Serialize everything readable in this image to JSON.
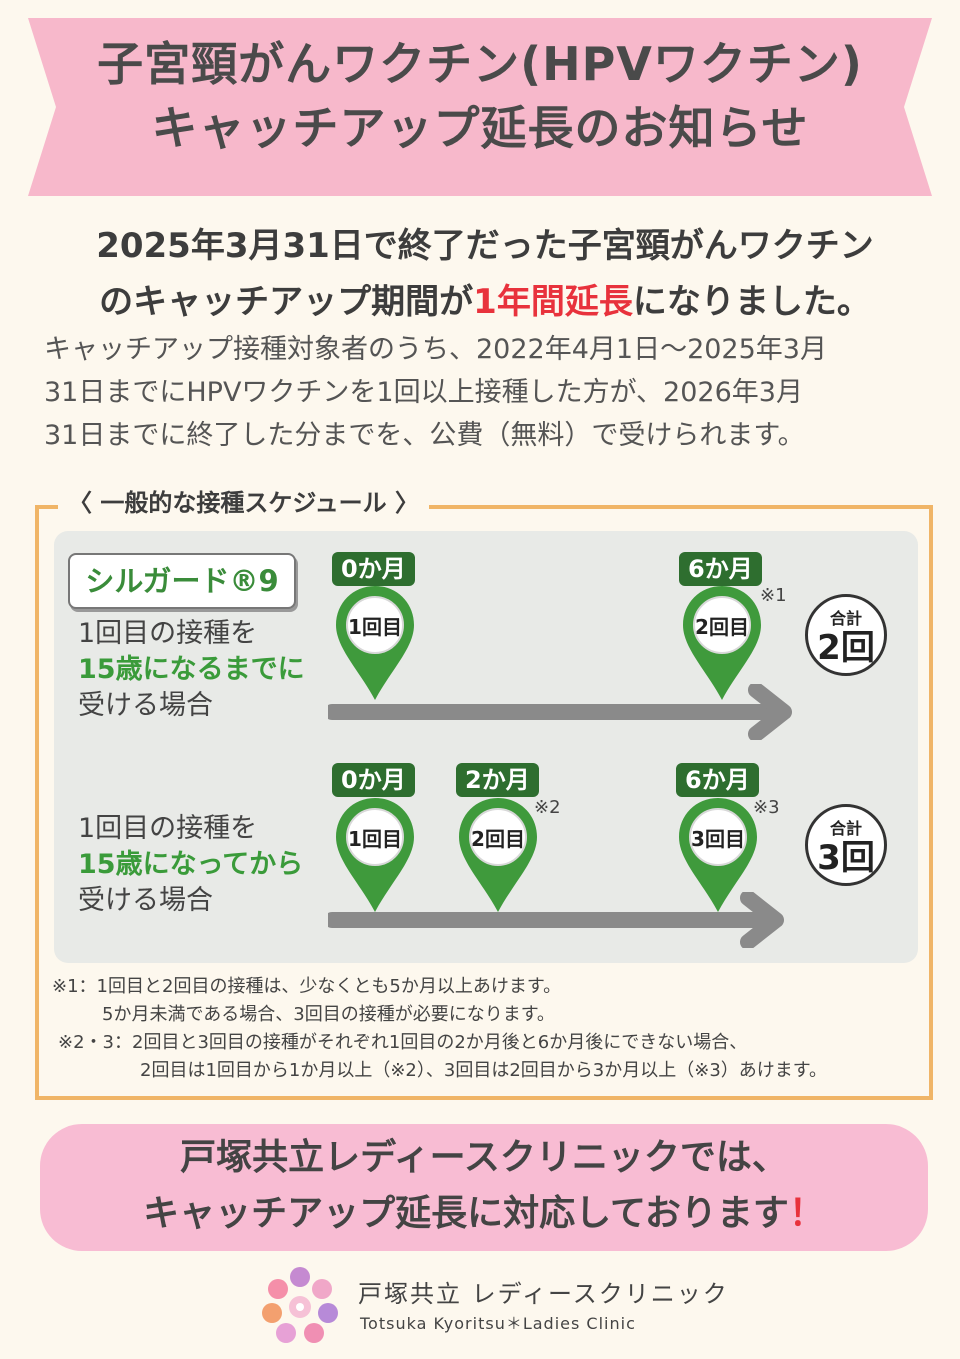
{
  "banner": {
    "line1": "子宮頸がんワクチン(HPVワクチン)",
    "line2": "キャッチアップ延長のお知らせ"
  },
  "headline": {
    "part1": "2025年3月31日で終了だった子宮頸がんワクチン",
    "part2": "のキャッチアップ期間が",
    "highlight": "1年間延長",
    "part3": "になりました。"
  },
  "body": {
    "line1": "キャッチアップ接種対象者のうち、2022年4月1日〜2025年3月",
    "line2": "31日までにHPVワクチンを1回以上接種した方が、2026年3月",
    "line3": "31日までに終了した分までを、公費（無料）で受けられます。"
  },
  "schedule": {
    "title": "〈 一般的な接種スケジュール 〉",
    "product": "シルガード®9",
    "row1": {
      "label_line1": "1回目の接種を",
      "label_line2": "15歳になるまでに",
      "label_line3": "受ける場合",
      "doses": [
        {
          "month": "0か月",
          "dose": "1回目",
          "note": ""
        },
        {
          "month": "6か月",
          "dose": "2回目",
          "note": "※1"
        }
      ],
      "total_label": "合計",
      "total_value": "2回"
    },
    "row2": {
      "label_line1": "1回目の接種を",
      "label_line2": "15歳になってから",
      "label_line3": "受ける場合",
      "doses": [
        {
          "month": "0か月",
          "dose": "1回目",
          "note": ""
        },
        {
          "month": "2か月",
          "dose": "2回目",
          "note": "※2"
        },
        {
          "month": "6か月",
          "dose": "3回目",
          "note": "※3"
        }
      ],
      "total_label": "合計",
      "total_value": "3回"
    },
    "footnotes": [
      "※1：1回目と2回目の接種は、少なくとも5か月以上あけます。",
      "5か月未満である場合、3回目の接種が必要になります。",
      "※2・3：2回目と3回目の接種がそれぞれ1回目の2か月後と6か月後にできない場合、",
      "2回目は1回目から1か月以上（※2）、3回目は2回目から3か月以上（※3）あけます。"
    ]
  },
  "callout": {
    "line1": "戸塚共立レディースクリニックでは、",
    "line2": "キャッチアップ延長に対応しております",
    "exclaim": "！"
  },
  "clinic": {
    "name_jp": "戸塚共立 レディースクリニック",
    "name_en": "Totsuka Kyoritsu＊Ladies Clinic"
  },
  "colors": {
    "banner_pink": "#f7b8cb",
    "highlight_red": "#e8323c",
    "schedule_border": "#f0b567",
    "pin_green": "#3f9a3c",
    "tag_green": "#2e6e2f",
    "callout_pink": "#f8bcd3"
  }
}
